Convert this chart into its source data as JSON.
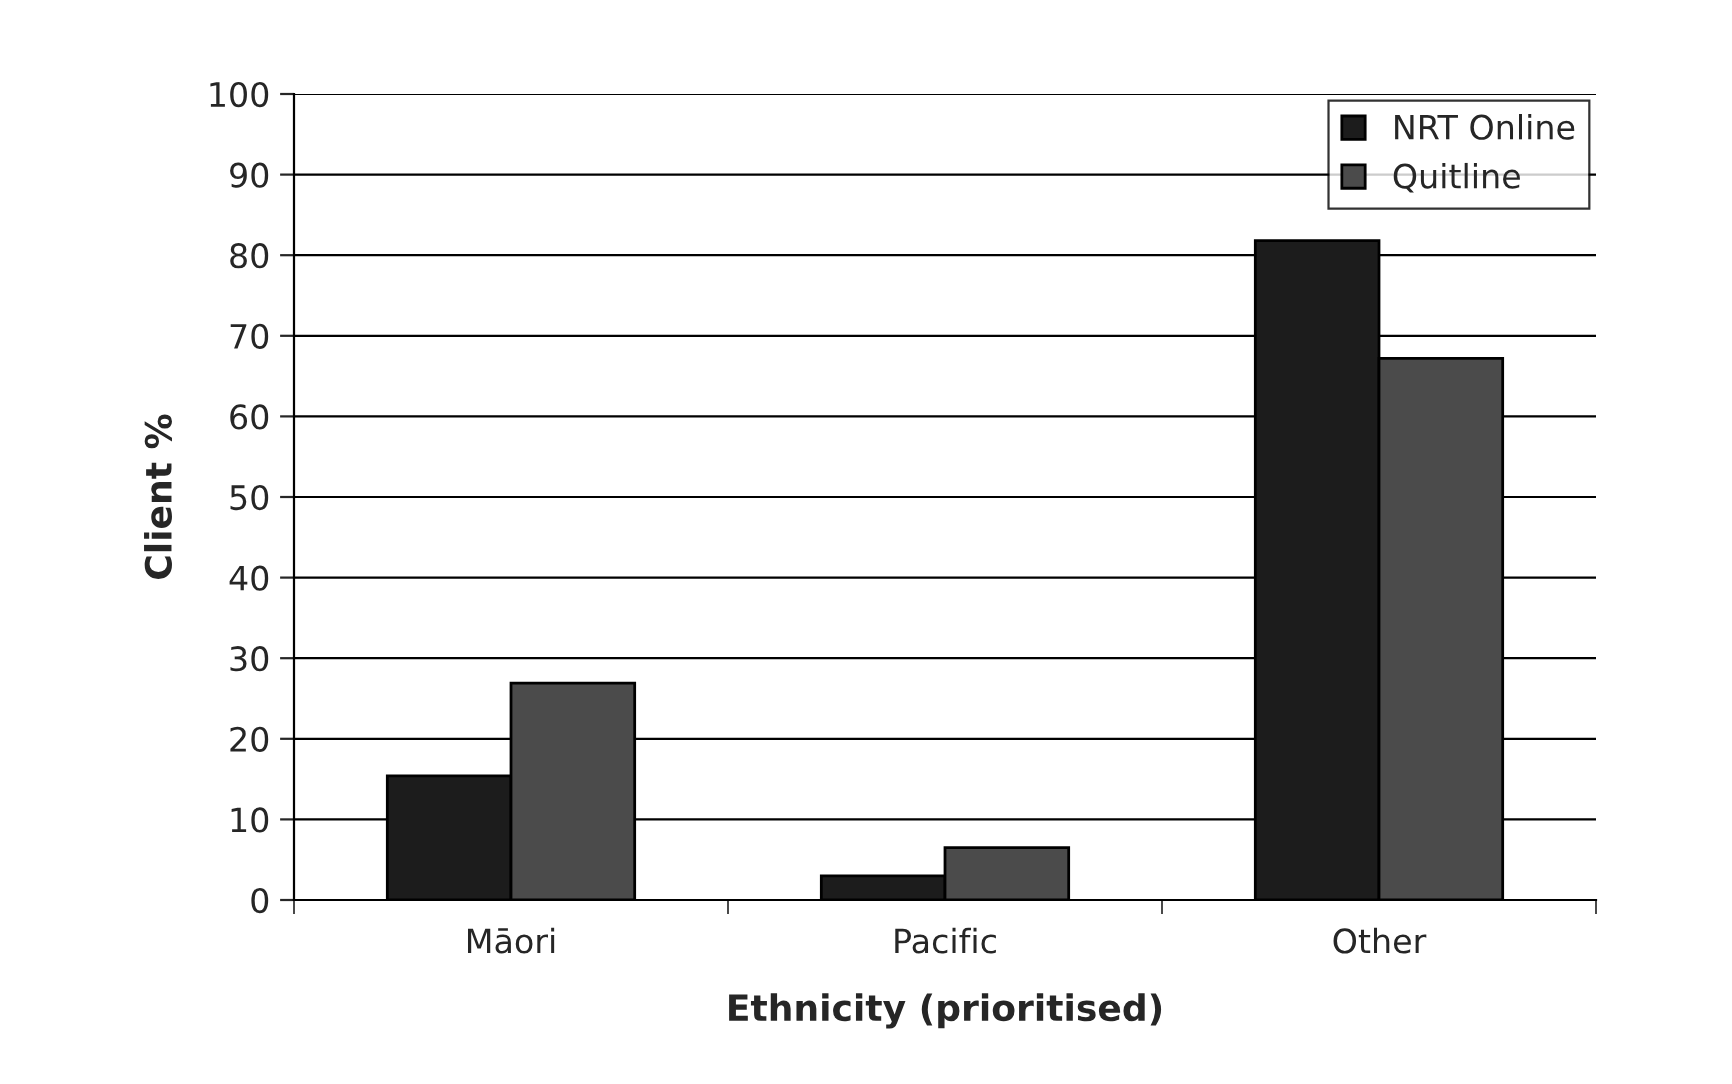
{
  "chart_data": {
    "type": "bar",
    "xlabel": "Ethnicity (prioritised)",
    "ylabel": "Client %",
    "categories": [
      "Māori",
      "Pacific",
      "Other"
    ],
    "series": [
      {
        "name": "NRT Online",
        "color": "#1c1c1c",
        "values": [
          15.4,
          3.0,
          81.8
        ]
      },
      {
        "name": "Quitline",
        "color": "#4b4b4b",
        "values": [
          26.9,
          6.5,
          67.2
        ]
      }
    ],
    "ylim": [
      0,
      100
    ],
    "yticks": [
      0,
      10,
      20,
      30,
      40,
      50,
      60,
      70,
      80,
      90,
      100
    ],
    "grid": "y",
    "legend": "top right"
  }
}
